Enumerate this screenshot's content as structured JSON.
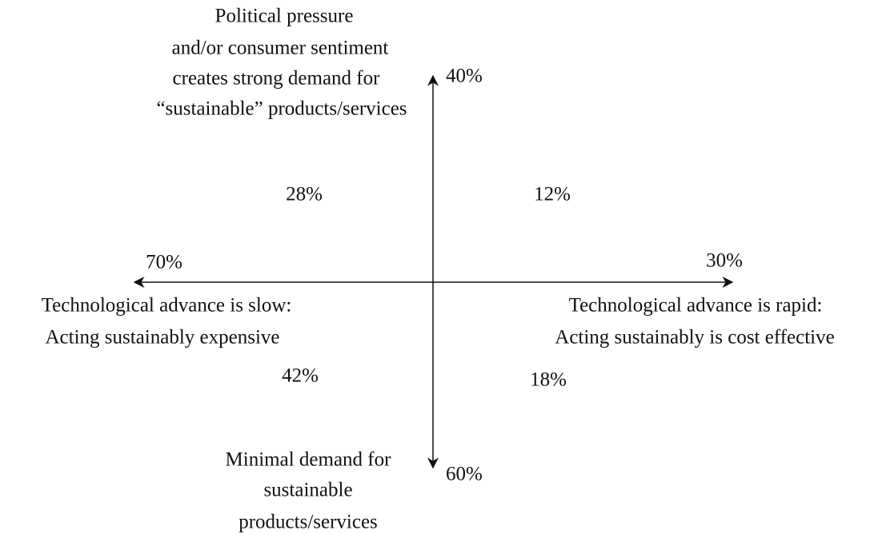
{
  "top": {
    "lines": [
      "Political pressure",
      "and/or consumer sentiment",
      "creates strong demand for",
      "“sustainable” products/services"
    ],
    "share": "40%"
  },
  "bottom": {
    "lines": [
      "Minimal demand for",
      "sustainable",
      "products/services"
    ],
    "share": "60%"
  },
  "left": {
    "lines": [
      "Technological advance is slow:",
      "Acting sustainably expensive"
    ],
    "share": "70%"
  },
  "right": {
    "lines": [
      "Technological advance is rapid:",
      "Acting sustainably is cost effective"
    ],
    "share": "30%"
  },
  "quadrants": {
    "top_left": "28%",
    "top_right": "12%",
    "bottom_left": "42%",
    "bottom_right": "18%"
  }
}
